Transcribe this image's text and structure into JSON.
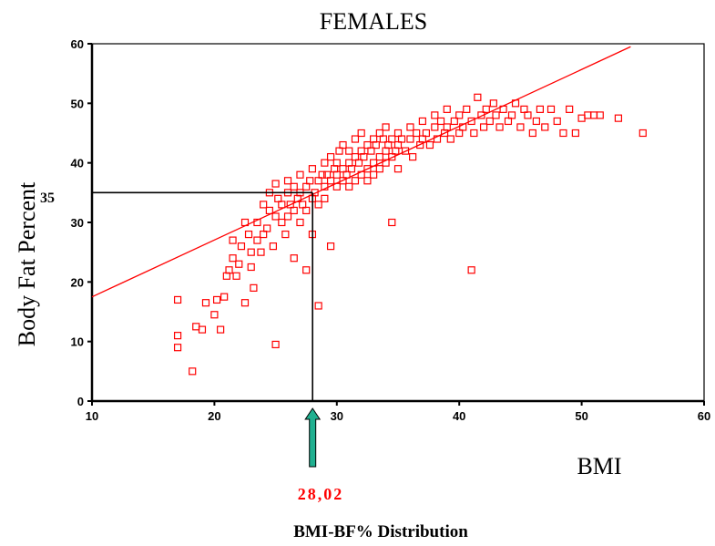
{
  "chart_data": {
    "type": "scatter",
    "title": "FEMALES",
    "xlabel": "BMI",
    "ylabel": "Body Fat Percent",
    "caption": "BMI-BF% Distribution",
    "xlim": [
      10,
      60
    ],
    "ylim": [
      0,
      60
    ],
    "x_ticks": [
      "10",
      "20",
      "30",
      "40",
      "50",
      "60"
    ],
    "y_ticks": [
      "0",
      "10",
      "20",
      "30",
      "40",
      "50",
      "60"
    ],
    "grid": false,
    "legend": "none",
    "fit_line": {
      "x": [
        10,
        54
      ],
      "y": [
        17.5,
        59.5
      ]
    },
    "reference": {
      "x": 28.02,
      "y": 35,
      "x_label": "28,02",
      "y_label": "35"
    },
    "colors": {
      "points": "#ff0000",
      "fit_line": "#ff0000",
      "reference_lines": "#000000",
      "arrow": "#20b090",
      "reference_value": "#ff0000"
    },
    "points": [
      [
        17,
        17
      ],
      [
        17,
        11
      ],
      [
        17,
        9
      ],
      [
        18.2,
        5
      ],
      [
        18.5,
        12.5
      ],
      [
        19,
        12
      ],
      [
        19.3,
        16.5
      ],
      [
        20,
        14.5
      ],
      [
        20.2,
        17
      ],
      [
        20.5,
        12
      ],
      [
        20.8,
        17.5
      ],
      [
        21,
        21
      ],
      [
        21.2,
        22
      ],
      [
        21.5,
        24
      ],
      [
        21.5,
        27
      ],
      [
        21.8,
        21
      ],
      [
        22,
        23
      ],
      [
        22.2,
        26
      ],
      [
        22.5,
        16.5
      ],
      [
        22.5,
        30
      ],
      [
        22.8,
        28
      ],
      [
        23,
        25
      ],
      [
        23,
        22.5
      ],
      [
        23.2,
        19
      ],
      [
        23.5,
        30
      ],
      [
        23.5,
        27
      ],
      [
        23.8,
        25
      ],
      [
        24,
        28
      ],
      [
        24,
        33
      ],
      [
        24.3,
        29
      ],
      [
        24.5,
        35
      ],
      [
        24.5,
        32
      ],
      [
        24.8,
        26
      ],
      [
        25,
        9.5
      ],
      [
        25,
        31
      ],
      [
        25,
        36.5
      ],
      [
        25.2,
        34
      ],
      [
        25.5,
        30
      ],
      [
        25.5,
        33
      ],
      [
        25.8,
        28
      ],
      [
        26,
        35
      ],
      [
        26,
        31
      ],
      [
        26,
        37
      ],
      [
        26.2,
        33
      ],
      [
        26.5,
        24
      ],
      [
        26.5,
        32
      ],
      [
        26.5,
        36
      ],
      [
        26.8,
        34
      ],
      [
        27,
        38
      ],
      [
        27,
        30
      ],
      [
        27,
        35
      ],
      [
        27.2,
        33
      ],
      [
        27.5,
        22
      ],
      [
        27.5,
        36
      ],
      [
        27.5,
        32
      ],
      [
        27.8,
        37
      ],
      [
        28,
        28
      ],
      [
        28,
        34
      ],
      [
        28,
        39
      ],
      [
        28.2,
        35
      ],
      [
        28.5,
        16
      ],
      [
        28.5,
        37
      ],
      [
        28.5,
        33
      ],
      [
        28.8,
        38
      ],
      [
        29,
        36
      ],
      [
        29,
        40
      ],
      [
        29,
        34
      ],
      [
        29.2,
        38
      ],
      [
        29.5,
        26
      ],
      [
        29.5,
        37
      ],
      [
        29.5,
        41
      ],
      [
        29.8,
        39
      ],
      [
        30,
        36
      ],
      [
        30,
        40
      ],
      [
        30,
        38
      ],
      [
        30.2,
        42
      ],
      [
        30.5,
        37
      ],
      [
        30.5,
        39
      ],
      [
        30.5,
        43
      ],
      [
        30.8,
        38
      ],
      [
        31,
        40
      ],
      [
        31,
        36
      ],
      [
        31,
        42
      ],
      [
        31.2,
        39
      ],
      [
        31.5,
        41
      ],
      [
        31.5,
        37
      ],
      [
        31.5,
        44
      ],
      [
        31.8,
        40
      ],
      [
        32,
        38
      ],
      [
        32,
        42
      ],
      [
        32,
        45
      ],
      [
        32.2,
        41
      ],
      [
        32.5,
        39
      ],
      [
        32.5,
        43
      ],
      [
        32.5,
        37
      ],
      [
        32.8,
        42
      ],
      [
        33,
        40
      ],
      [
        33,
        44
      ],
      [
        33,
        38
      ],
      [
        33.2,
        43
      ],
      [
        33.5,
        41
      ],
      [
        33.5,
        45
      ],
      [
        33.5,
        39
      ],
      [
        33.8,
        44
      ],
      [
        34,
        42
      ],
      [
        34,
        40
      ],
      [
        34,
        46
      ],
      [
        34.2,
        43
      ],
      [
        34.5,
        30
      ],
      [
        34.5,
        41
      ],
      [
        34.5,
        44
      ],
      [
        34.8,
        42
      ],
      [
        35,
        45
      ],
      [
        35,
        43
      ],
      [
        35,
        39
      ],
      [
        35.3,
        44
      ],
      [
        35.6,
        42
      ],
      [
        36,
        46
      ],
      [
        36,
        44
      ],
      [
        36.2,
        41
      ],
      [
        36.5,
        45
      ],
      [
        36.8,
        43
      ],
      [
        37,
        47
      ],
      [
        37,
        44
      ],
      [
        37.3,
        45
      ],
      [
        37.6,
        43
      ],
      [
        38,
        46
      ],
      [
        38,
        48
      ],
      [
        38.2,
        44
      ],
      [
        38.5,
        47
      ],
      [
        38.8,
        45
      ],
      [
        39,
        49
      ],
      [
        39,
        46
      ],
      [
        39.3,
        44
      ],
      [
        39.6,
        47
      ],
      [
        40,
        45
      ],
      [
        40,
        48
      ],
      [
        40.3,
        46
      ],
      [
        40.6,
        49
      ],
      [
        41,
        22
      ],
      [
        41,
        47
      ],
      [
        41.2,
        45
      ],
      [
        41.5,
        51
      ],
      [
        41.8,
        48
      ],
      [
        42,
        46
      ],
      [
        42.2,
        49
      ],
      [
        42.5,
        47
      ],
      [
        42.8,
        50
      ],
      [
        43,
        48
      ],
      [
        43.3,
        46
      ],
      [
        43.6,
        49
      ],
      [
        44,
        47
      ],
      [
        44.3,
        48
      ],
      [
        44.6,
        50
      ],
      [
        45,
        46
      ],
      [
        45.3,
        49
      ],
      [
        45.6,
        48
      ],
      [
        46,
        45
      ],
      [
        46.3,
        47
      ],
      [
        46.6,
        49
      ],
      [
        47,
        46
      ],
      [
        47.5,
        49
      ],
      [
        48,
        47
      ],
      [
        48.5,
        45
      ],
      [
        49,
        49
      ],
      [
        49.5,
        45
      ],
      [
        50,
        47.5
      ],
      [
        50.5,
        48
      ],
      [
        51,
        48
      ],
      [
        51.5,
        48
      ],
      [
        53,
        47.5
      ],
      [
        55,
        45
      ]
    ]
  }
}
